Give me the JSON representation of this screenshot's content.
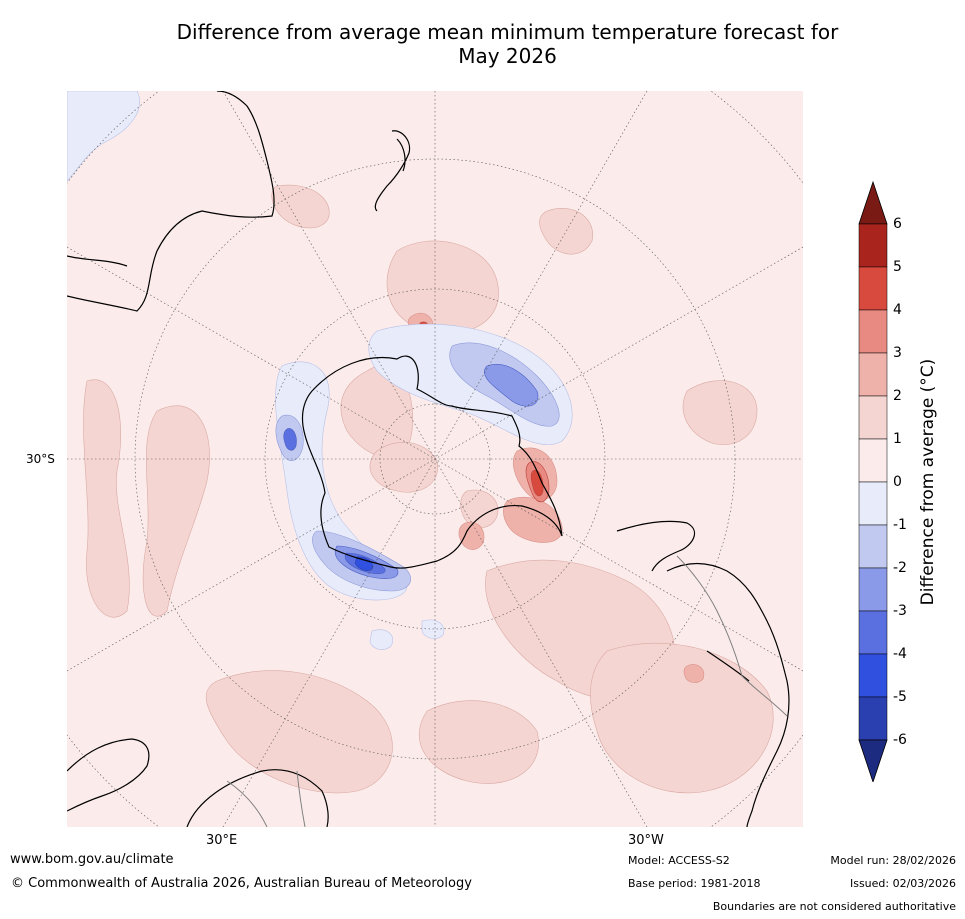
{
  "title": {
    "line1": "Difference from average mean minimum temperature forecast for",
    "line2": "May 2026"
  },
  "map": {
    "projection": "south-polar-stereographic",
    "lat_label": "30°S",
    "lon_labels": {
      "east": "30°E",
      "west": "30°W"
    },
    "colors": {
      "ocean_background": "#fbeceb",
      "graticule": "#555555",
      "coastline": "#000000",
      "borders": "#808080"
    }
  },
  "colorbar": {
    "title": "Difference from average (°C)",
    "ticks": [
      "6",
      "5",
      "4",
      "3",
      "2",
      "1",
      "0",
      "-1",
      "-2",
      "-3",
      "-4",
      "-5",
      "-6"
    ],
    "extend_max_color": "#7a1a14",
    "extend_min_color": "#1c2a80",
    "bins": [
      {
        "range": "5 to 6",
        "color": "#a9241c"
      },
      {
        "range": "4 to 5",
        "color": "#d94a3e"
      },
      {
        "range": "3 to 4",
        "color": "#e88a82"
      },
      {
        "range": "2 to 3",
        "color": "#efb2ab"
      },
      {
        "range": "1 to 2",
        "color": "#f5d5d1"
      },
      {
        "range": "0 to 1",
        "color": "#fbeceb"
      },
      {
        "range": "-1 to 0",
        "color": "#e8ecfa"
      },
      {
        "range": "-2 to -1",
        "color": "#c1c9f1"
      },
      {
        "range": "-3 to -2",
        "color": "#8a9ae8"
      },
      {
        "range": "-4 to -3",
        "color": "#5a70e0"
      },
      {
        "range": "-5 to -4",
        "color": "#3050e0"
      },
      {
        "range": "-6 to -5",
        "color": "#2a3fb0"
      }
    ]
  },
  "footer": {
    "url": "www.bom.gov.au/climate",
    "copyright": "© Commonwealth of Australia 2026, Australian Bureau of Meteorology",
    "model": "Model: ACCESS-S2",
    "base_period": "Base period: 1981-2018",
    "model_run": "Model run: 28/02/2026",
    "issued": "Issued: 02/03/2026",
    "boundaries": "Boundaries are not considered authoritative"
  }
}
